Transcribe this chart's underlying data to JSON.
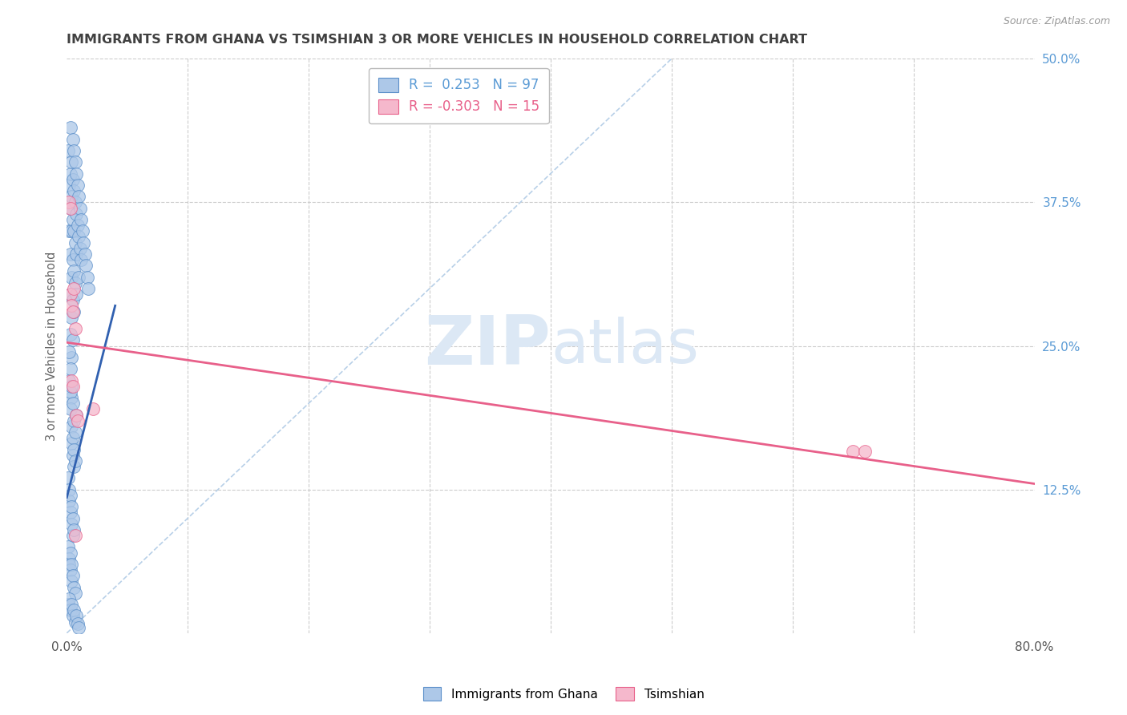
{
  "title": "IMMIGRANTS FROM GHANA VS TSIMSHIAN 3 OR MORE VEHICLES IN HOUSEHOLD CORRELATION CHART",
  "source": "Source: ZipAtlas.com",
  "ylabel": "3 or more Vehicles in Household",
  "xlim": [
    0.0,
    0.8
  ],
  "ylim": [
    0.0,
    0.5
  ],
  "xtick_positions": [
    0.0,
    0.1,
    0.2,
    0.3,
    0.4,
    0.5,
    0.6,
    0.7,
    0.8
  ],
  "xticklabels": [
    "0.0%",
    "",
    "",
    "",
    "",
    "",
    "",
    "",
    "80.0%"
  ],
  "ytick_positions": [
    0.125,
    0.25,
    0.375,
    0.5
  ],
  "ytick_labels_right": [
    "12.5%",
    "25.0%",
    "37.5%",
    "50.0%"
  ],
  "ghana_R": 0.253,
  "ghana_N": 97,
  "tsimshian_R": -0.303,
  "tsimshian_N": 15,
  "ghana_color": "#adc8e8",
  "tsimshian_color": "#f5b8cc",
  "ghana_edge_color": "#5b8fc9",
  "tsimshian_edge_color": "#e8608a",
  "ghana_line_color": "#3060b0",
  "tsimshian_line_color": "#e8608a",
  "diagonal_color": "#b8d0e8",
  "background_color": "#ffffff",
  "grid_color": "#cccccc",
  "title_color": "#404040",
  "watermark_text_color": "#dce8f5",
  "right_tick_color": "#5b9bd5",
  "ghana_scatter_x": [
    0.001,
    0.002,
    0.002,
    0.003,
    0.003,
    0.003,
    0.003,
    0.003,
    0.003,
    0.004,
    0.004,
    0.004,
    0.004,
    0.004,
    0.004,
    0.004,
    0.005,
    0.005,
    0.005,
    0.005,
    0.005,
    0.005,
    0.006,
    0.006,
    0.006,
    0.006,
    0.006,
    0.007,
    0.007,
    0.007,
    0.007,
    0.008,
    0.008,
    0.008,
    0.008,
    0.009,
    0.009,
    0.01,
    0.01,
    0.01,
    0.011,
    0.011,
    0.012,
    0.012,
    0.013,
    0.014,
    0.015,
    0.016,
    0.017,
    0.018,
    0.002,
    0.003,
    0.003,
    0.004,
    0.004,
    0.005,
    0.005,
    0.006,
    0.006,
    0.007,
    0.001,
    0.002,
    0.002,
    0.003,
    0.003,
    0.004,
    0.004,
    0.005,
    0.005,
    0.006,
    0.001,
    0.002,
    0.002,
    0.003,
    0.003,
    0.004,
    0.004,
    0.005,
    0.006,
    0.007,
    0.001,
    0.002,
    0.003,
    0.004,
    0.005,
    0.006,
    0.007,
    0.008,
    0.009,
    0.01,
    0.002,
    0.003,
    0.004,
    0.005,
    0.006,
    0.007,
    0.008
  ],
  "ghana_scatter_y": [
    0.42,
    0.39,
    0.35,
    0.44,
    0.4,
    0.37,
    0.33,
    0.295,
    0.26,
    0.41,
    0.38,
    0.35,
    0.31,
    0.275,
    0.24,
    0.205,
    0.43,
    0.395,
    0.36,
    0.325,
    0.29,
    0.255,
    0.42,
    0.385,
    0.35,
    0.315,
    0.28,
    0.41,
    0.375,
    0.34,
    0.305,
    0.4,
    0.365,
    0.33,
    0.295,
    0.39,
    0.355,
    0.38,
    0.345,
    0.31,
    0.37,
    0.335,
    0.36,
    0.325,
    0.35,
    0.34,
    0.33,
    0.32,
    0.31,
    0.3,
    0.22,
    0.21,
    0.195,
    0.18,
    0.165,
    0.17,
    0.155,
    0.16,
    0.145,
    0.15,
    0.135,
    0.125,
    0.115,
    0.12,
    0.105,
    0.11,
    0.095,
    0.1,
    0.085,
    0.09,
    0.075,
    0.065,
    0.06,
    0.07,
    0.055,
    0.06,
    0.045,
    0.05,
    0.04,
    0.035,
    0.025,
    0.03,
    0.02,
    0.025,
    0.015,
    0.02,
    0.01,
    0.015,
    0.008,
    0.005,
    0.245,
    0.23,
    0.215,
    0.2,
    0.185,
    0.175,
    0.19
  ],
  "tsimshian_scatter_x": [
    0.002,
    0.003,
    0.003,
    0.004,
    0.004,
    0.005,
    0.005,
    0.006,
    0.007,
    0.008,
    0.009,
    0.022,
    0.65,
    0.66,
    0.007
  ],
  "tsimshian_scatter_y": [
    0.375,
    0.37,
    0.295,
    0.285,
    0.22,
    0.28,
    0.215,
    0.3,
    0.265,
    0.19,
    0.185,
    0.195,
    0.158,
    0.158,
    0.085
  ],
  "ghana_line_x": [
    0.0,
    0.04
  ],
  "ghana_line_y_start": 0.118,
  "ghana_line_y_end": 0.285,
  "tsimshian_line_x": [
    0.0,
    0.8
  ],
  "tsimshian_line_y_start": 0.253,
  "tsimshian_line_y_end": 0.13,
  "diag_line_x": [
    0.0,
    0.5
  ],
  "diag_line_y": [
    0.0,
    0.5
  ]
}
